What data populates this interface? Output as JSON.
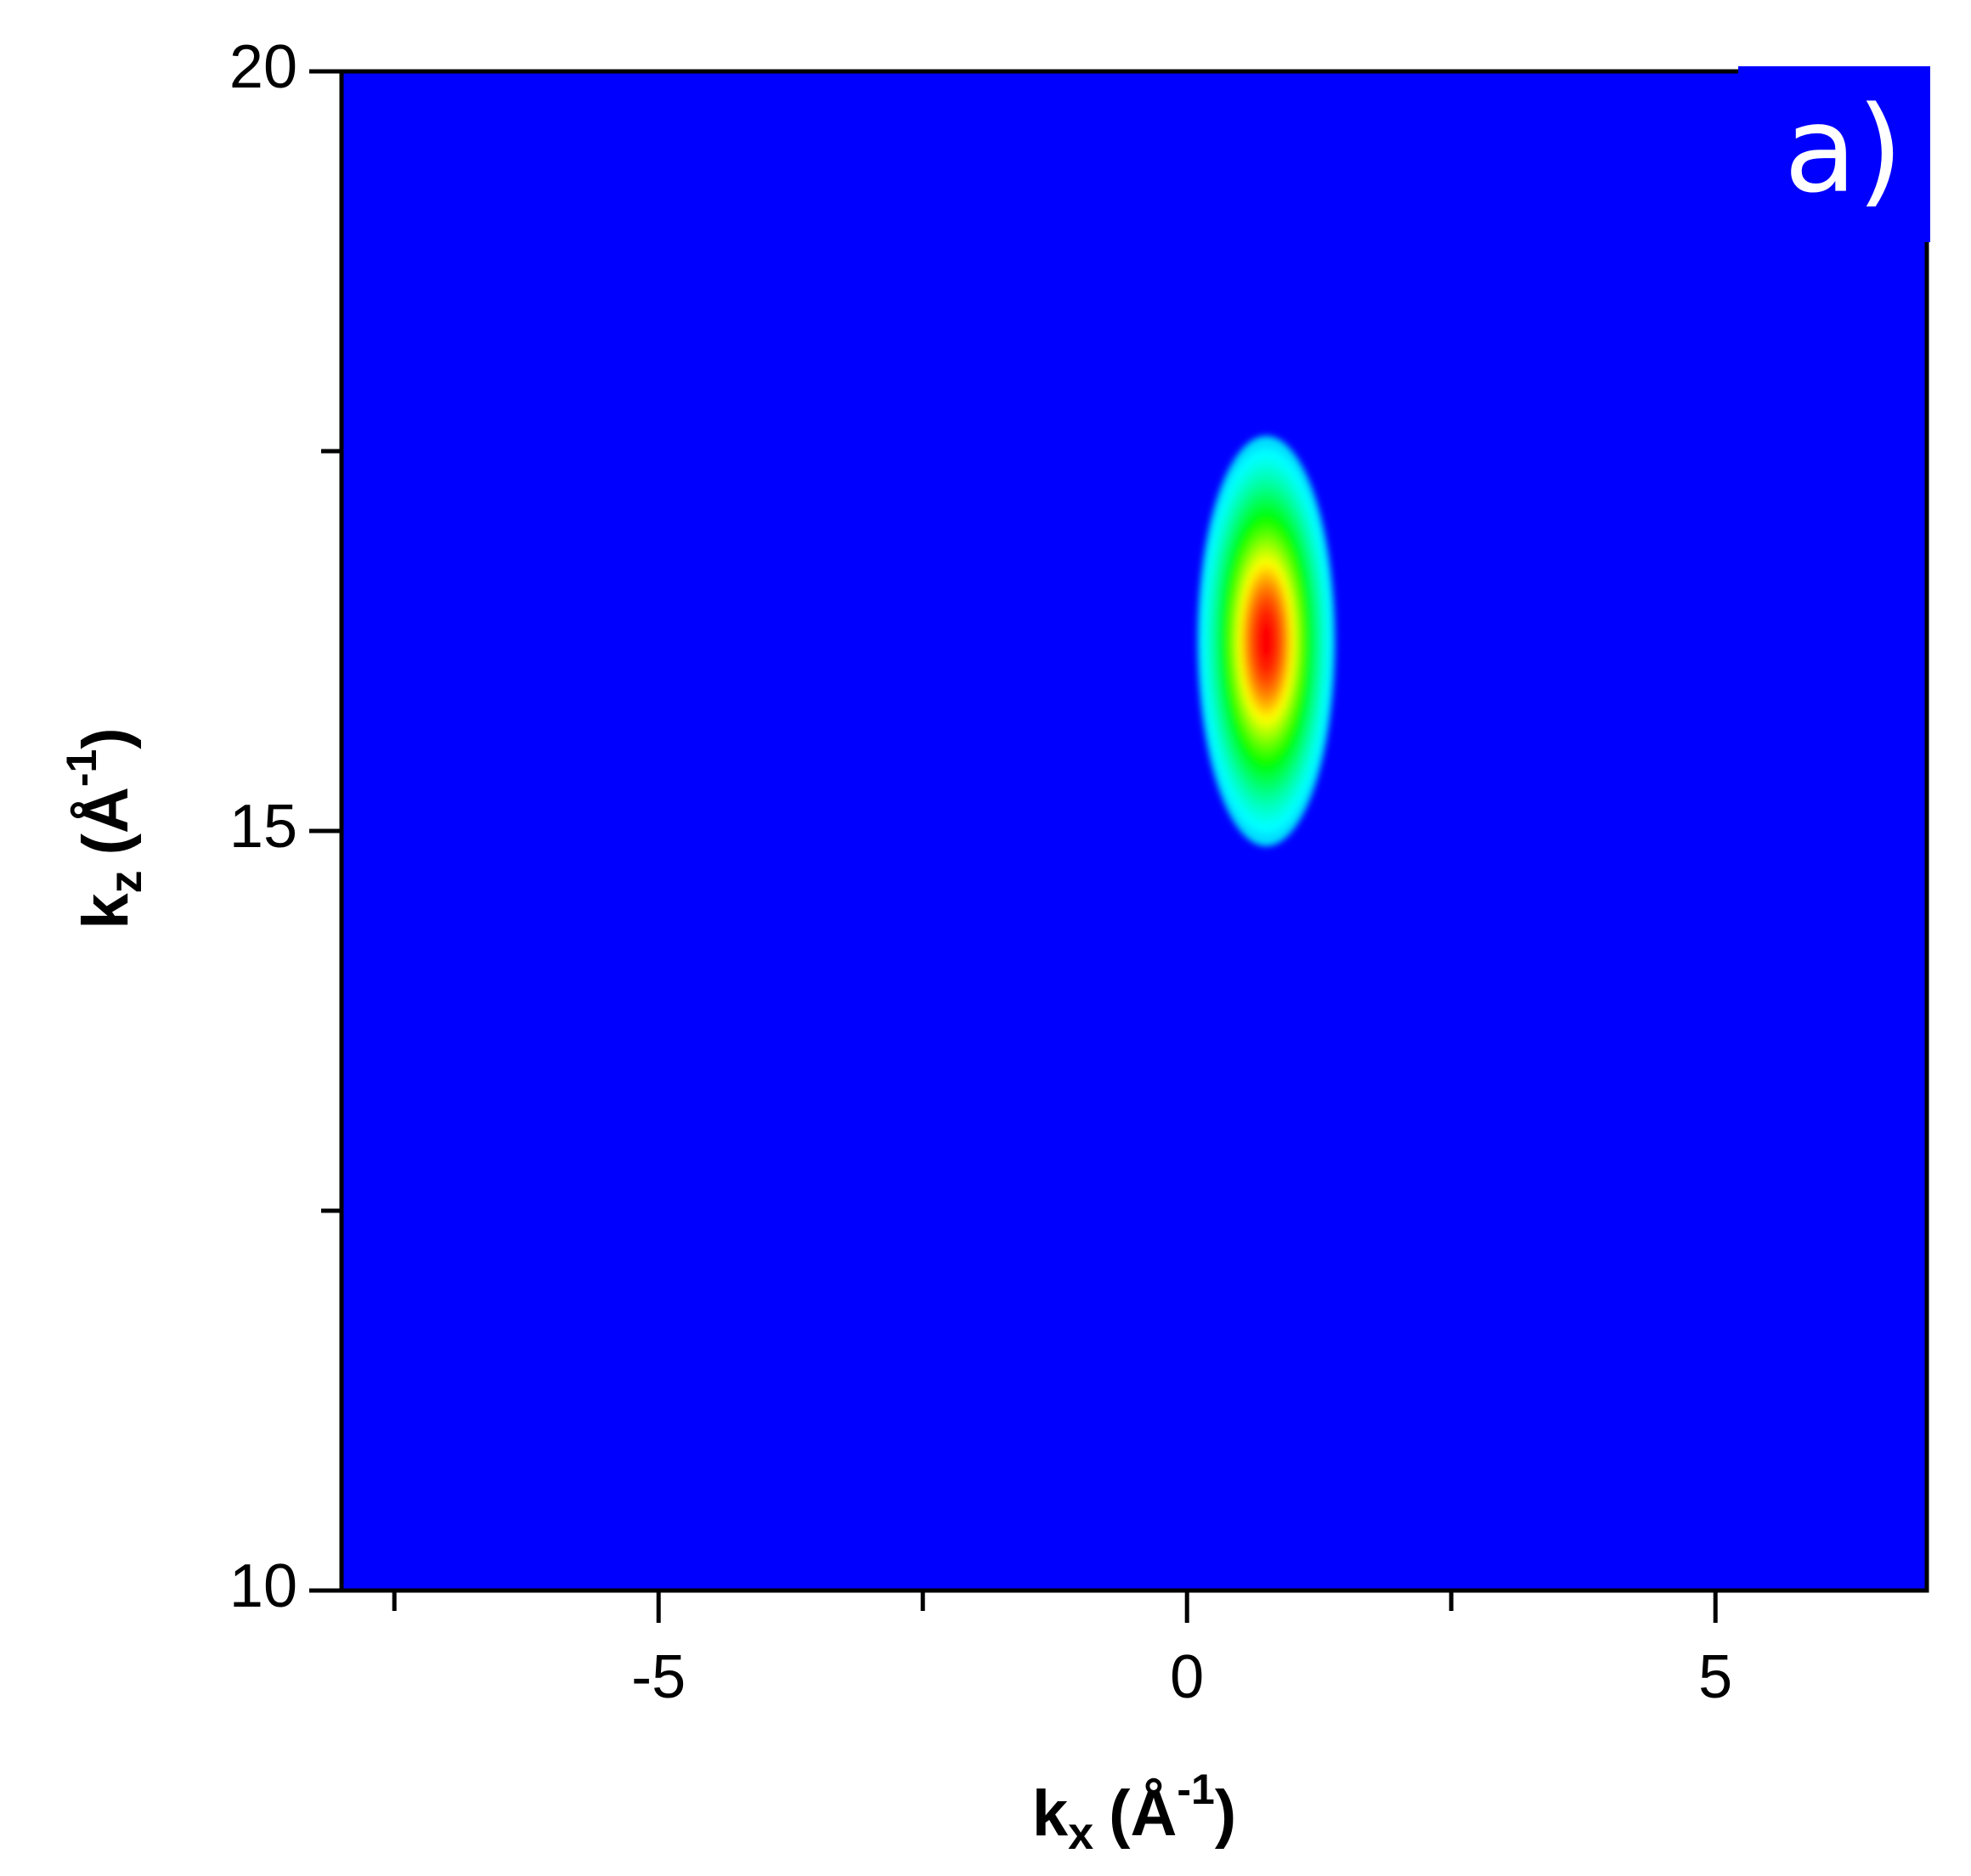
{
  "chart_data": {
    "type": "heatmap",
    "panel_label": "a)",
    "xlabel": [
      "k",
      "x",
      "(Å",
      "-1",
      ")"
    ],
    "ylabel": [
      "k",
      "z",
      "(Å",
      "-1",
      ")"
    ],
    "xlim": [
      -8,
      7
    ],
    "xticks": [
      -5,
      0,
      5
    ],
    "xminorticks": [
      -7.5,
      -2.5,
      2.5
    ],
    "ylim": [
      10,
      20
    ],
    "yticks": [
      10,
      15,
      20
    ],
    "yminorticks": [
      12.5,
      17.5
    ],
    "background": "#0000ff",
    "colormap": [
      "#0000ff",
      "#00ffff",
      "#00ff00",
      "#ffff00",
      "#ff0000"
    ],
    "peak": {
      "x": 0.75,
      "y": 16.25,
      "width_x": 1.3,
      "width_z": 2.7
    }
  }
}
